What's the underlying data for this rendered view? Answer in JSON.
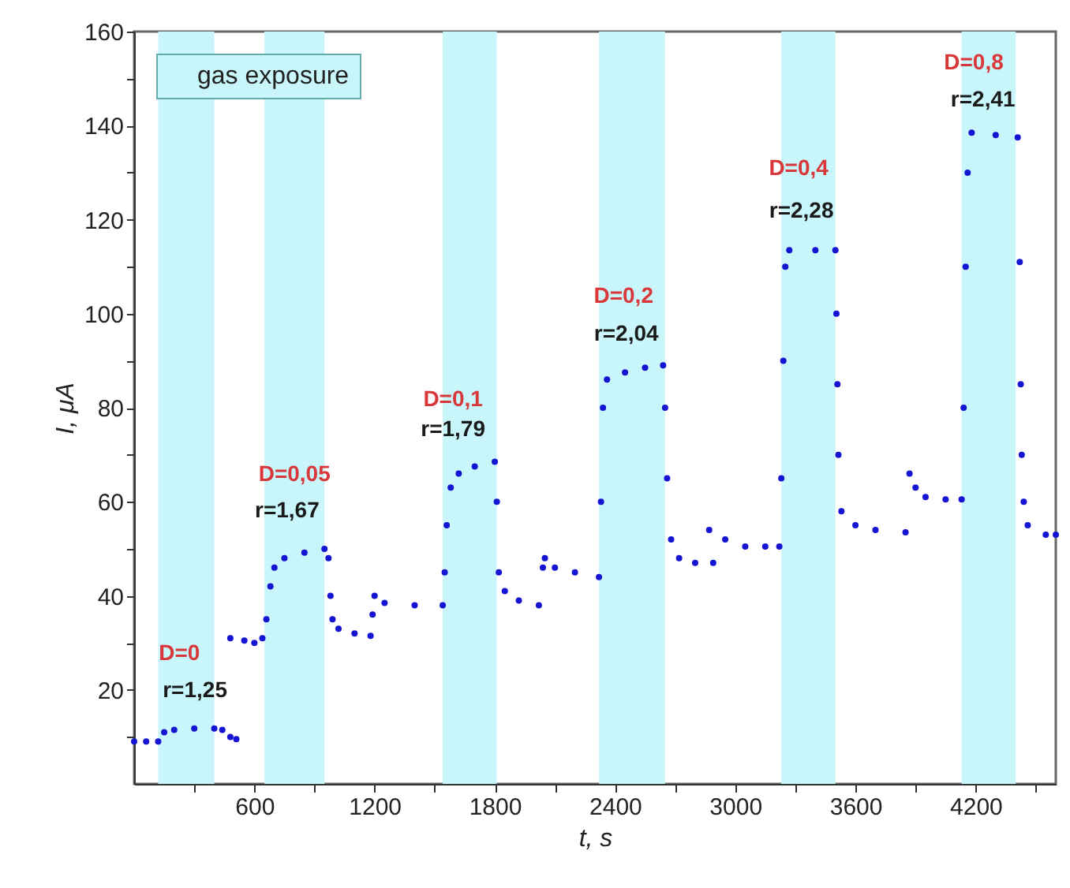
{
  "chart_data": {
    "type": "scatter",
    "xlabel": "t, s",
    "ylabel": "I, μA",
    "xlim": [
      0,
      4600
    ],
    "ylim": [
      0,
      160
    ],
    "xticks": [
      {
        "value": 300,
        "label": null
      },
      600,
      {
        "value": 900,
        "label": null
      },
      1200,
      {
        "value": 1500,
        "label": null
      },
      1800,
      {
        "value": 2100,
        "label": null
      },
      2400,
      {
        "value": 2700,
        "label": null
      },
      3000,
      {
        "value": 3300,
        "label": null
      },
      3600,
      {
        "value": 3900,
        "label": null
      },
      4200,
      {
        "value": 4500,
        "label": null
      }
    ],
    "yticks": [
      {
        "value": 10,
        "label": null
      },
      20,
      {
        "value": 30,
        "label": null
      },
      40,
      {
        "value": 50,
        "label": null
      },
      60,
      {
        "value": 70,
        "label": null
      },
      80,
      {
        "value": 90,
        "label": null
      },
      100,
      {
        "value": 110,
        "label": null
      },
      120,
      {
        "value": 130,
        "label": null
      },
      140,
      {
        "value": 150,
        "label": null
      },
      160
    ],
    "marker": "circle",
    "legend": "top left",
    "series": [
      {
        "color": "#1414d2",
        "x": [
          0,
          60,
          120,
          150,
          200,
          300,
          400,
          440,
          480,
          510,
          480,
          550,
          600,
          640,
          660,
          680,
          700,
          750,
          850,
          950,
          970,
          980,
          990,
          1020,
          1100,
          1180,
          1190,
          1200,
          1250,
          1400,
          1540,
          1550,
          1560,
          1580,
          1620,
          1700,
          1800,
          1810,
          1820,
          1850,
          1920,
          2020,
          2040,
          2050,
          2100,
          2200,
          2320,
          2330,
          2340,
          2360,
          2450,
          2550,
          2640,
          2650,
          2660,
          2680,
          2720,
          2800,
          2890,
          2870,
          2950,
          3050,
          3150,
          3220,
          3230,
          3240,
          3250,
          3270,
          3400,
          3500,
          3505,
          3510,
          3515,
          3530,
          3600,
          3700,
          3850,
          3870,
          3900,
          3950,
          4050,
          4130,
          4140,
          4150,
          4160,
          4180,
          4300,
          4410,
          4420,
          4425,
          4430,
          4440,
          4460,
          4550,
          4600
        ],
        "values": [
          9,
          9,
          9,
          11,
          11.5,
          11.8,
          11.8,
          11.5,
          10,
          9.5,
          31,
          30.5,
          30,
          31,
          35,
          42,
          46,
          48,
          49.2,
          50,
          48,
          40,
          35,
          33,
          32,
          31.5,
          36,
          40,
          38.5,
          38,
          38,
          45,
          55,
          63,
          66,
          67.5,
          68.5,
          60,
          45,
          41,
          39,
          38,
          46,
          48,
          46,
          45,
          44,
          60,
          80,
          86,
          87.5,
          88.5,
          89,
          80,
          65,
          52,
          48,
          47,
          47,
          54,
          52,
          50.5,
          50.5,
          50.5,
          65,
          90,
          110,
          113.5,
          113.5,
          113.5,
          100,
          85,
          70,
          58,
          55,
          54,
          53.5,
          66,
          63,
          61,
          60.5,
          60.5,
          80,
          110,
          130,
          138.5,
          138,
          137.5,
          111,
          85,
          70,
          60,
          55,
          53,
          53
        ]
      }
    ],
    "bands": [
      {
        "axis": "x",
        "from": 120,
        "to": 400,
        "label": "gas exposure",
        "color": "#c8f6fa"
      },
      {
        "axis": "x",
        "from": 650,
        "to": 950,
        "color": "#c8f6fa"
      },
      {
        "axis": "x",
        "from": 1540,
        "to": 1810,
        "color": "#c8f6fa"
      },
      {
        "axis": "x",
        "from": 2320,
        "to": 2650,
        "color": "#c8f6fa"
      },
      {
        "axis": "x",
        "from": 3230,
        "to": 3500,
        "color": "#c8f6fa"
      },
      {
        "axis": "x",
        "from": 4130,
        "to": 4400,
        "color": "#c8f6fa"
      }
    ],
    "annotations": [
      "D=0",
      "r=1,25",
      "D=0,05",
      "r=1,67",
      "D=0,1",
      "r=1,79",
      "D=0,2",
      "r=2,04",
      "D=0,4",
      "r=2,28",
      "D=0,8",
      "r=2,41"
    ]
  }
}
